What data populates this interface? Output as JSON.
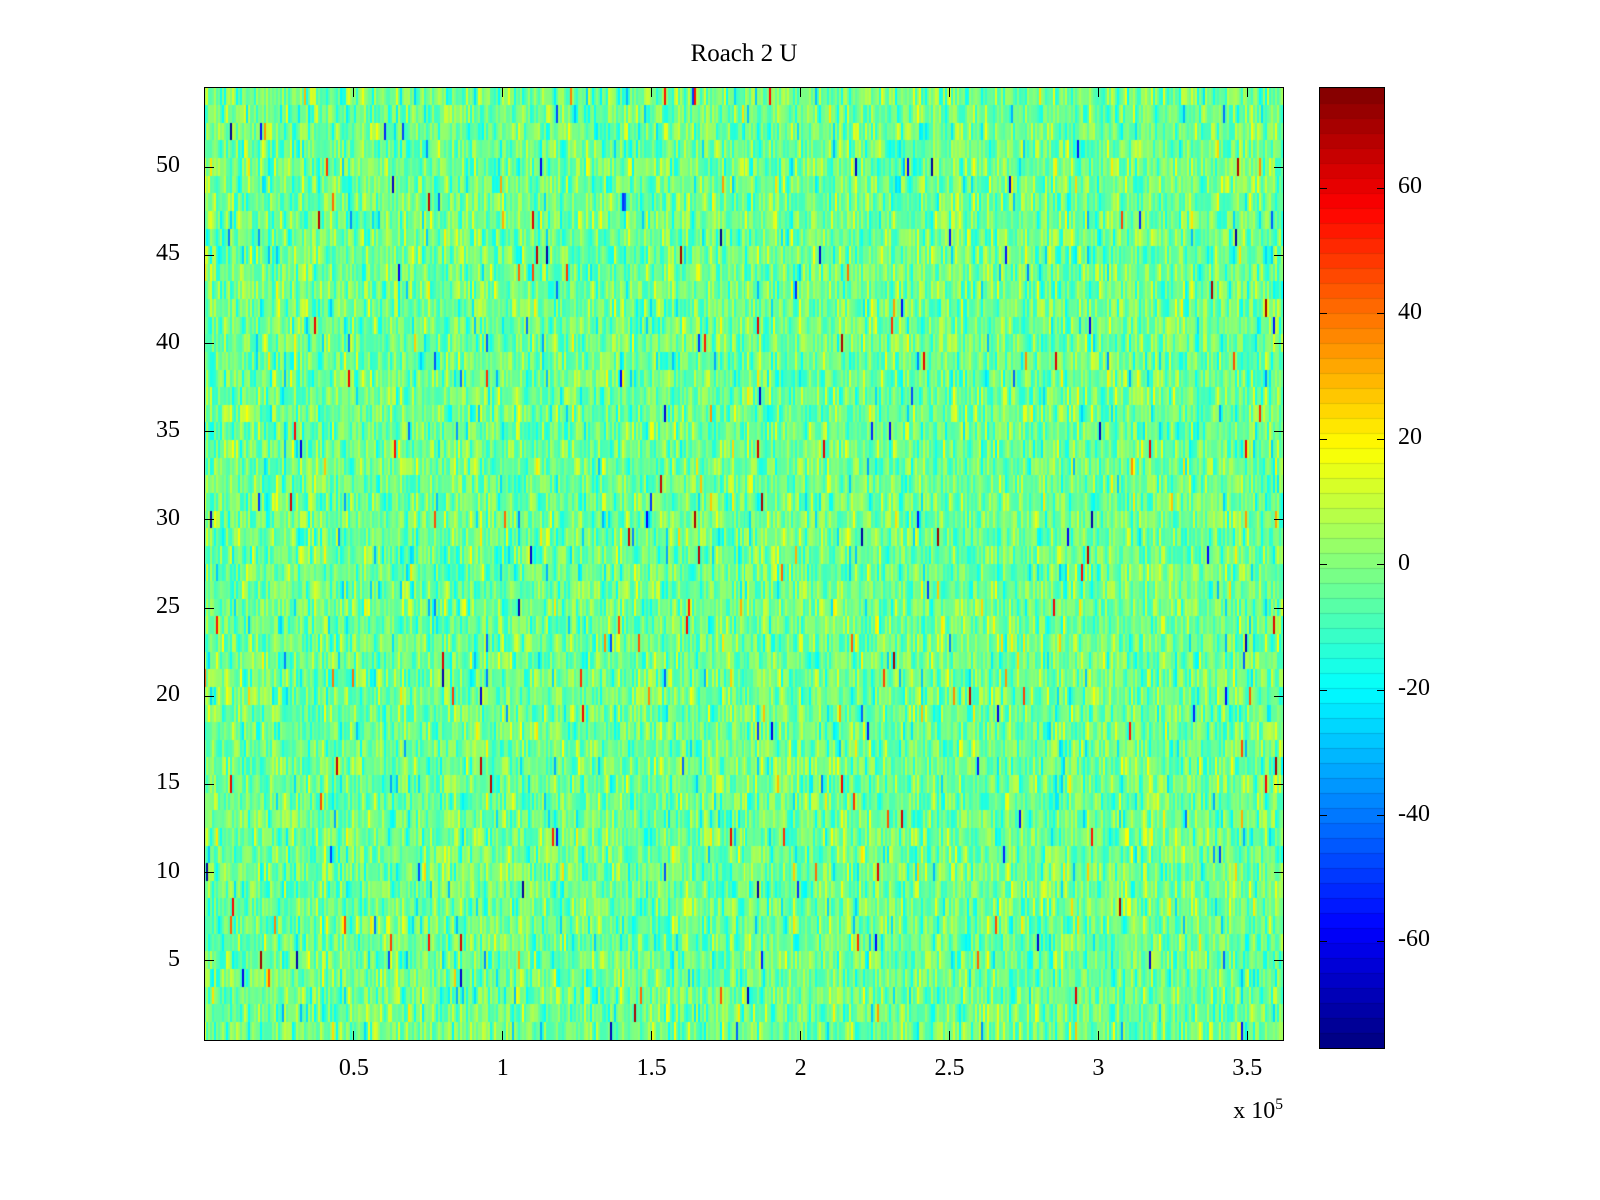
{
  "title": "Roach 2 U",
  "chart_data": {
    "type": "heatmap",
    "title": "Roach 2 U",
    "xlabel": "",
    "ylabel": "",
    "xlim": [
      0,
      362000
    ],
    "ylim": [
      0.5,
      54.5
    ],
    "x_ticks": [
      50000,
      100000,
      150000,
      200000,
      250000,
      300000,
      350000
    ],
    "x_tick_labels": [
      "0.5",
      "1",
      "1.5",
      "2",
      "2.5",
      "3",
      "3.5"
    ],
    "x_exponent_base": "x 10",
    "x_exponent_power": "5",
    "y_ticks": [
      5,
      10,
      15,
      20,
      25,
      30,
      35,
      40,
      45,
      50
    ],
    "y_tick_labels": [
      "5",
      "10",
      "15",
      "20",
      "25",
      "30",
      "35",
      "40",
      "45",
      "50"
    ],
    "rows": 54,
    "cols": 540,
    "colormap": "jet",
    "clim": [
      -77,
      76
    ],
    "colorbar_ticks": [
      60,
      40,
      20,
      0,
      -20,
      -40,
      -60
    ],
    "colorbar_tick_labels": [
      "60",
      "40",
      "20",
      "0",
      "-20",
      "-40",
      "-60"
    ],
    "colorbar_bands": 64,
    "noise": {
      "mean": -3,
      "std": 8.5,
      "outlier_prob": 0.015,
      "outlier_min": -75,
      "outlier_max": 72,
      "seed": 1234
    },
    "grid": false,
    "legend_position": "none",
    "axes_color": "#000000",
    "background": "#ffffff"
  }
}
